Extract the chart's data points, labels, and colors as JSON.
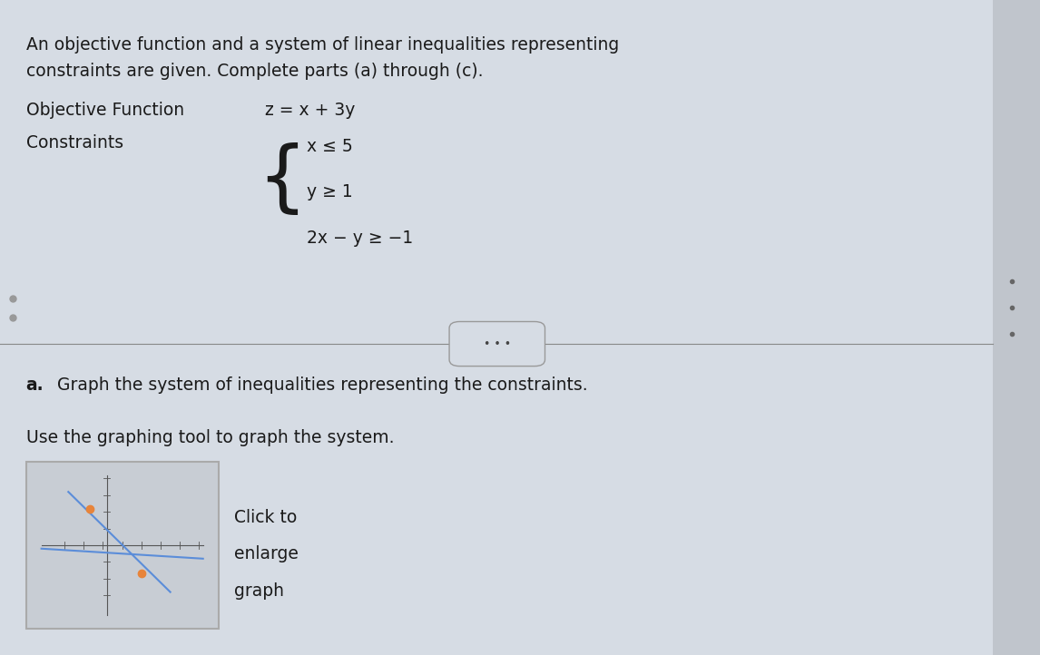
{
  "bg_color": "#d6dce4",
  "text_color": "#1a1a1a",
  "title_line1": "An objective function and a system of linear inequalities representing",
  "title_line2": "constraints are given. Complete parts (a) through (c).",
  "obj_label": "Objective Function",
  "obj_expr": "z = x + 3y",
  "constraints_label": "Constraints",
  "constraints": [
    "x ≤ 5",
    "y ≥ 1",
    "2x − y ≥ −1"
  ],
  "divider_label": "• • •",
  "part_a_label": "a.",
  "part_a_text": "Graph the system of inequalities representing the constraints.",
  "use_graphing_text": "Use the graphing tool to graph the system.",
  "click_line1": "Click to",
  "click_line2": "enlarge",
  "click_line3": "graph",
  "thumbnail_bg": "#c8cdd4",
  "thumbnail_border": "#aaaaaa",
  "line_color": "#5b8dd9",
  "point_color": "#e8843a",
  "sidebar_color": "#c0c5cc"
}
